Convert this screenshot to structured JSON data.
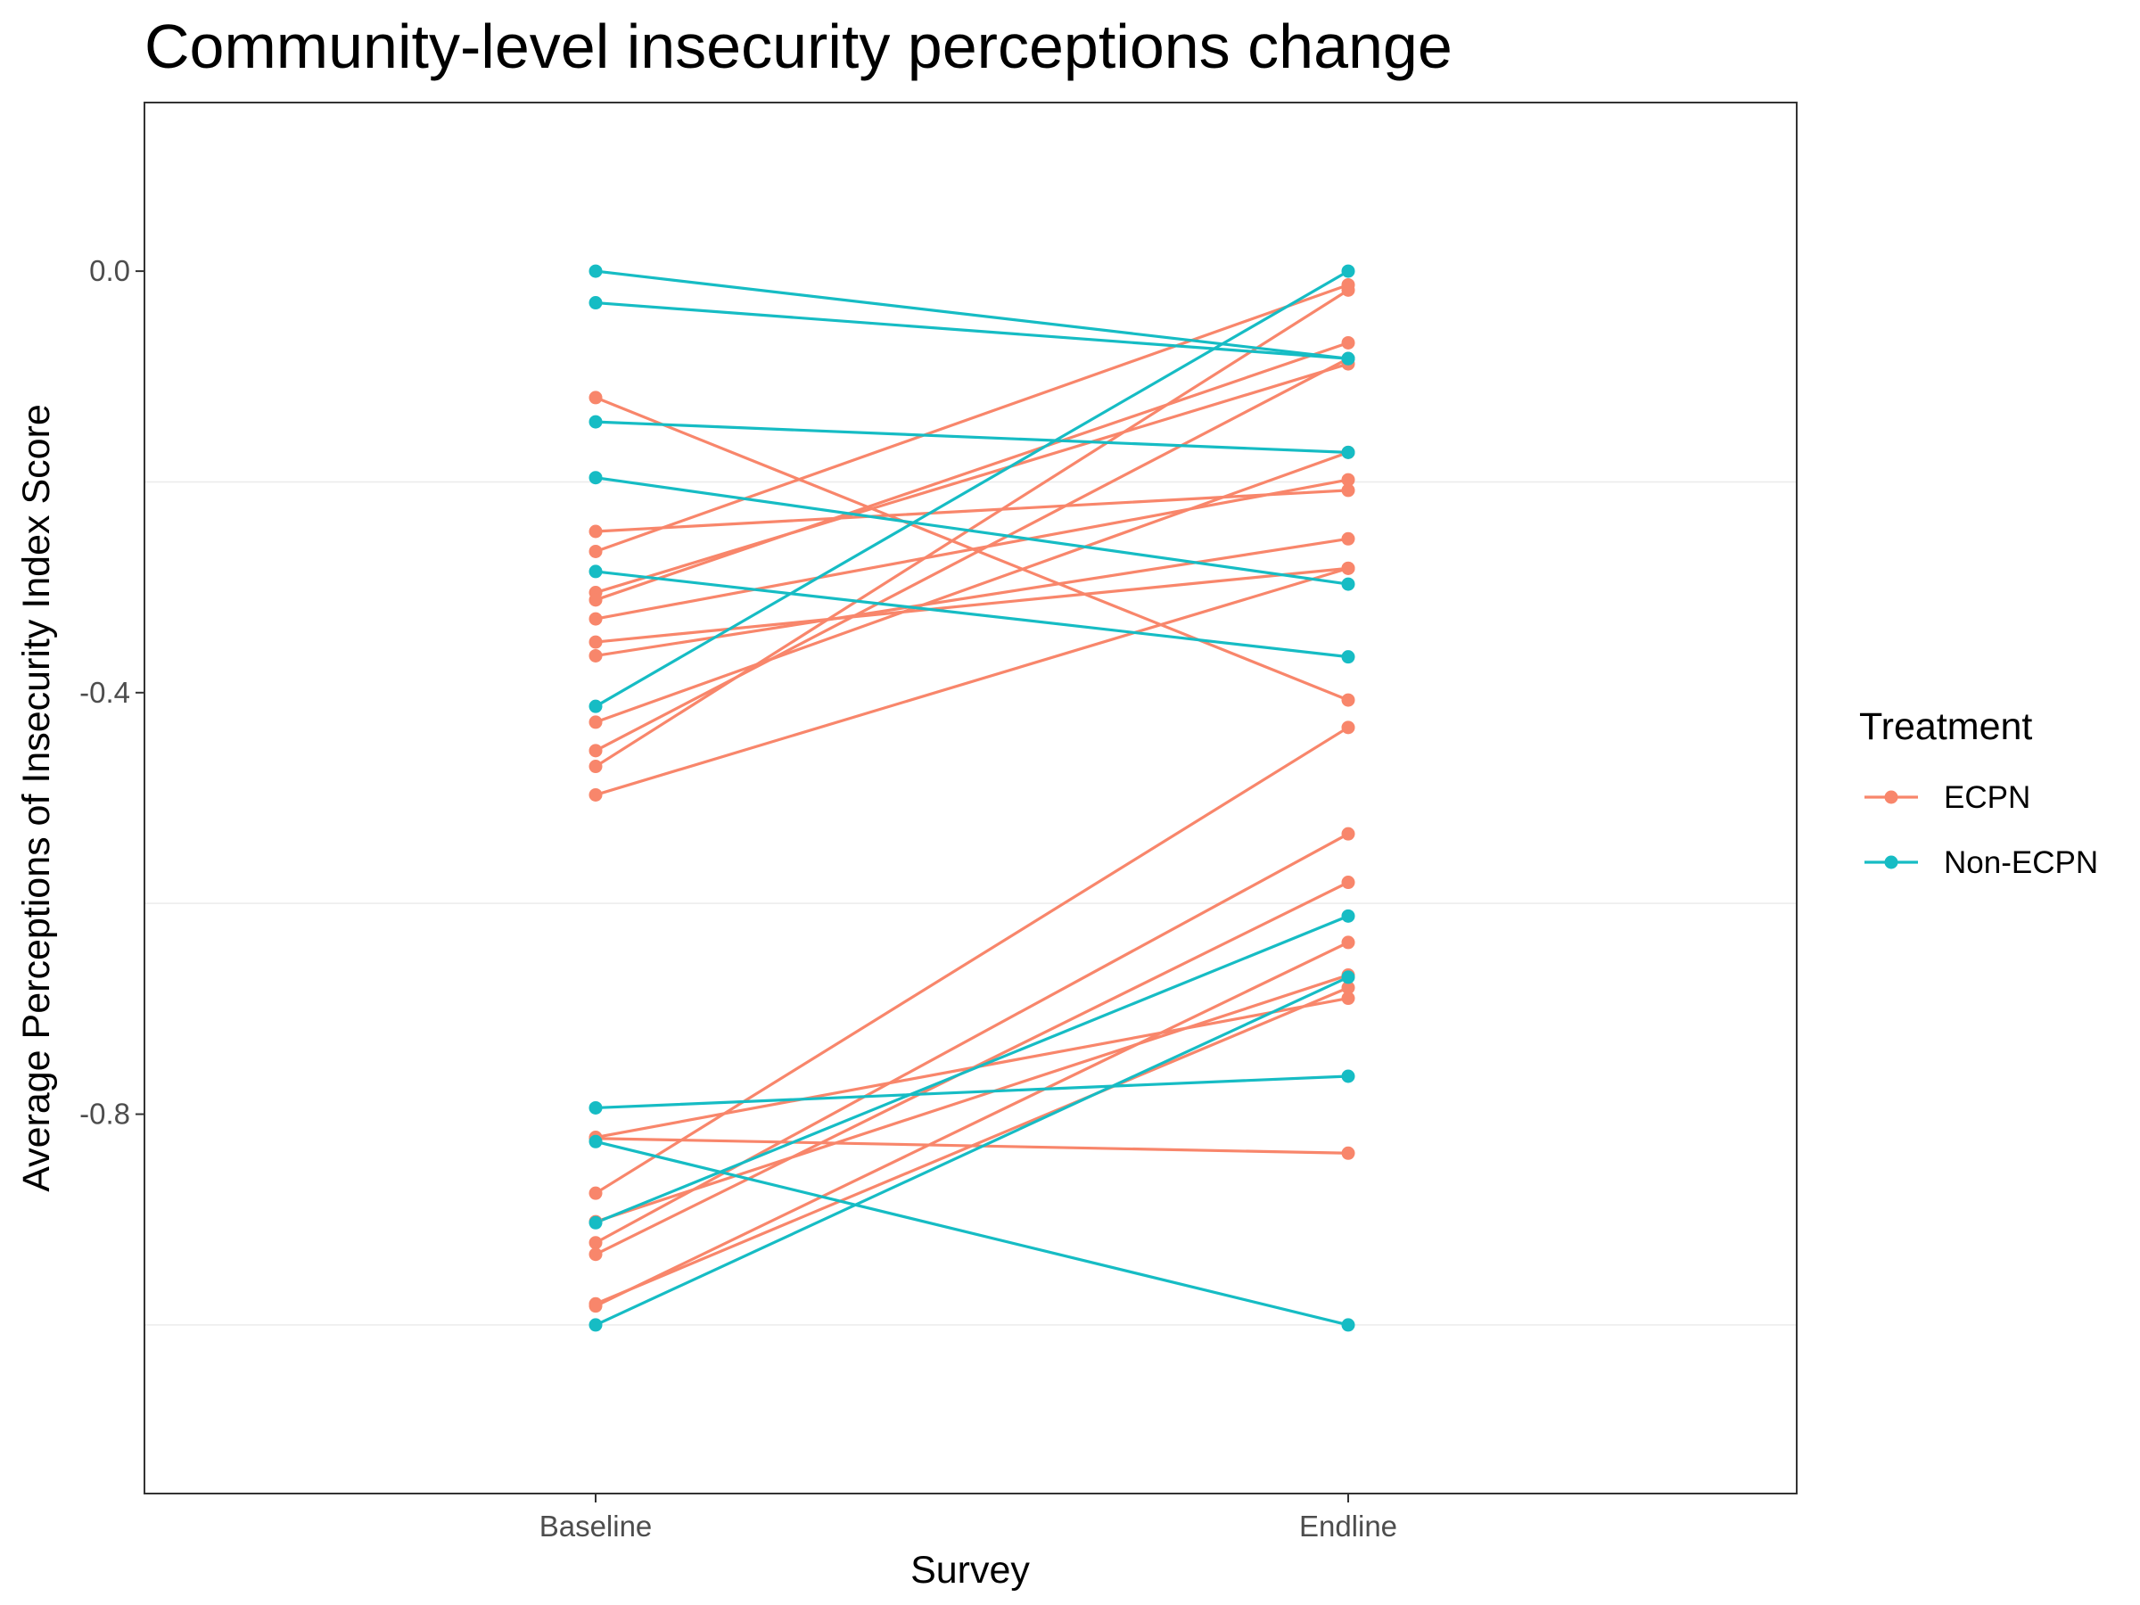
{
  "chart_data": {
    "type": "line",
    "title": "Community-level insecurity perceptions change",
    "xlabel": "Survey",
    "ylabel": "Average Perceptions of Insecurity Index Score",
    "categories": [
      "Baseline",
      "Endline"
    ],
    "ylim": [
      -1.16,
      0.16
    ],
    "yticks": [
      0.0,
      -0.4,
      -0.8
    ],
    "ytick_labels": [
      "0.0",
      "-0.4",
      "-0.8"
    ],
    "grid": true,
    "legend": {
      "title": "Treatment",
      "placement": "right",
      "entries": [
        {
          "name": "ECPN",
          "color": "#F8866B"
        },
        {
          "name": "Non-ECPN",
          "color": "#16BCC4"
        }
      ]
    },
    "series": [
      {
        "name": "ECPN",
        "color": "#F8866B",
        "lines": [
          [
            -0.12,
            -0.407
          ],
          [
            -0.247,
            -0.208
          ],
          [
            -0.266,
            -0.013
          ],
          [
            -0.305,
            -0.088
          ],
          [
            -0.312,
            -0.068
          ],
          [
            -0.33,
            -0.198
          ],
          [
            -0.352,
            -0.282
          ],
          [
            -0.365,
            -0.254
          ],
          [
            -0.428,
            -0.172
          ],
          [
            -0.455,
            -0.083
          ],
          [
            -0.47,
            -0.018
          ],
          [
            -0.497,
            -0.282
          ],
          [
            -0.822,
            -0.69
          ],
          [
            -0.823,
            -0.837
          ],
          [
            -0.875,
            -0.433
          ],
          [
            -0.902,
            -0.668
          ],
          [
            -0.922,
            -0.534
          ],
          [
            -0.933,
            -0.58
          ],
          [
            -0.982,
            -0.637
          ],
          [
            -0.98,
            -0.68
          ]
        ]
      },
      {
        "name": "Non-ECPN",
        "color": "#16BCC4",
        "lines": [
          [
            0.0,
            -0.083
          ],
          [
            -0.03,
            -0.083
          ],
          [
            -0.143,
            -0.172
          ],
          [
            -0.196,
            -0.297
          ],
          [
            -0.285,
            -0.366
          ],
          [
            -0.413,
            0.0
          ],
          [
            -0.794,
            -0.764
          ],
          [
            -0.826,
            -1.0
          ],
          [
            -0.903,
            -0.612
          ],
          [
            -1.0,
            -0.67
          ]
        ]
      }
    ]
  }
}
